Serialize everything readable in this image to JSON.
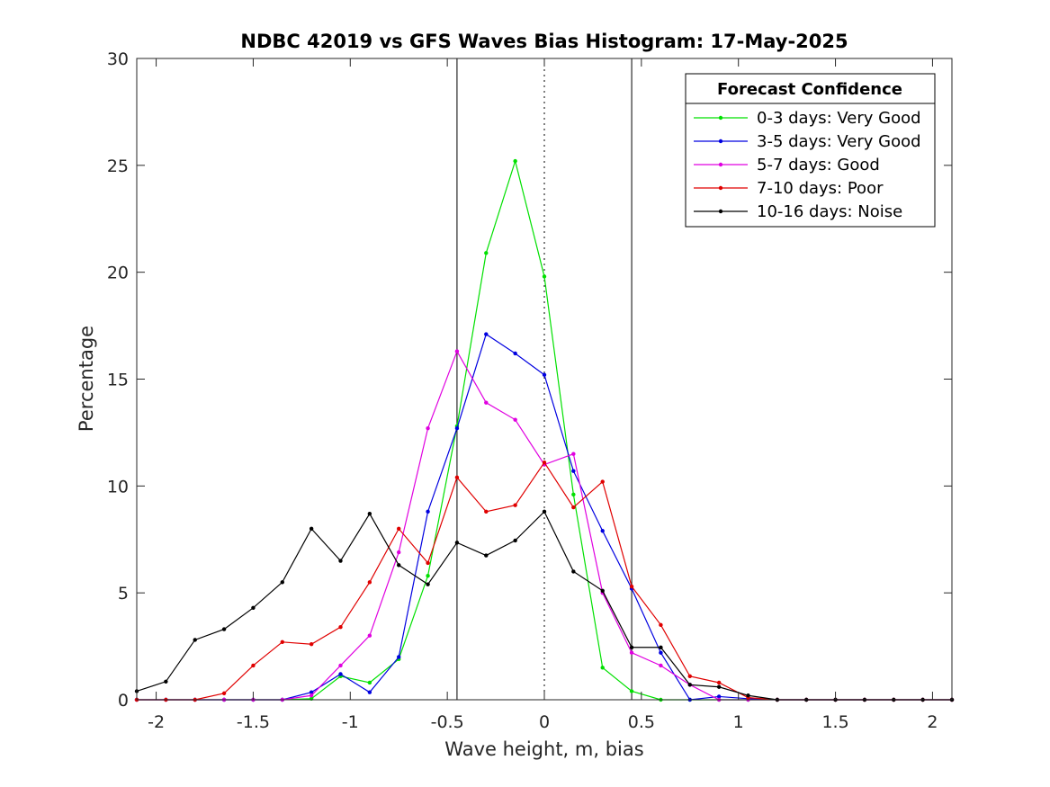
{
  "chart_data": {
    "type": "line",
    "title": "NDBC 42019 vs GFS Waves Bias Histogram: 17-May-2025",
    "xlabel": "Wave height, m, bias",
    "ylabel": "Percentage",
    "xlim": [
      -2.1,
      2.1
    ],
    "ylim": [
      0,
      30
    ],
    "x_ticks": [
      -2,
      -1.5,
      -1,
      -0.5,
      0,
      0.5,
      1,
      1.5,
      2
    ],
    "x_tick_labels": [
      "-2",
      "-1.5",
      "-1",
      "-0.5",
      "0",
      "0.5",
      "1",
      "1.5",
      "2"
    ],
    "y_ticks": [
      0,
      5,
      10,
      15,
      20,
      25,
      30
    ],
    "y_tick_labels": [
      "0",
      "5",
      "10",
      "15",
      "20",
      "25",
      "30"
    ],
    "grid": false,
    "reference_lines": {
      "solid_x": [
        -0.45,
        0.45
      ],
      "dotted_x": [
        0
      ]
    },
    "legend": {
      "title": "Forecast Confidence",
      "placement": "top-right"
    },
    "x": [
      -2.1,
      -1.95,
      -1.8,
      -1.65,
      -1.5,
      -1.35,
      -1.2,
      -1.05,
      -0.9,
      -0.75,
      -0.6,
      -0.45,
      -0.3,
      -0.15,
      0,
      0.15,
      0.3,
      0.45,
      0.6,
      0.75,
      0.9,
      1.05,
      1.2,
      1.35,
      1.5,
      1.65,
      1.8,
      1.95,
      2.1
    ],
    "series": [
      {
        "name": "0-3 days: Very Good",
        "color": "#00e000",
        "values": [
          0,
          0,
          0,
          0,
          0,
          0,
          0.05,
          1.1,
          0.8,
          1.9,
          5.8,
          12.8,
          20.9,
          25.2,
          19.8,
          9.6,
          1.5,
          0.4,
          0,
          0,
          0,
          0,
          0,
          0,
          0,
          0,
          0,
          0,
          0
        ]
      },
      {
        "name": "3-5 days: Very Good",
        "color": "#0000e0",
        "values": [
          0,
          0,
          0,
          0,
          0,
          0,
          0.35,
          1.2,
          0.35,
          2.0,
          8.8,
          12.7,
          17.1,
          16.2,
          15.2,
          10.7,
          7.9,
          5.2,
          2.2,
          0,
          0.15,
          0.05,
          0,
          0,
          0,
          0,
          0,
          0,
          0
        ]
      },
      {
        "name": "5-7 days: Good",
        "color": "#e000e0",
        "values": [
          0,
          0,
          0,
          0,
          0,
          0,
          0.2,
          1.6,
          3.0,
          6.9,
          12.7,
          16.3,
          13.9,
          13.1,
          11.0,
          11.5,
          5.0,
          2.2,
          1.6,
          0.7,
          0,
          0,
          0,
          0,
          0,
          0,
          0,
          0,
          0
        ]
      },
      {
        "name": "7-10 days: Poor",
        "color": "#e00000",
        "values": [
          0,
          0,
          0,
          0.3,
          1.6,
          2.7,
          2.6,
          3.4,
          5.5,
          8.0,
          6.4,
          10.4,
          8.8,
          9.1,
          11.1,
          9.0,
          10.2,
          5.3,
          3.5,
          1.1,
          0.8,
          0.1,
          0,
          0,
          0,
          0,
          0,
          0,
          0
        ]
      },
      {
        "name": "10-16 days: Noise",
        "color": "#000000",
        "values": [
          0.4,
          0.85,
          2.8,
          3.3,
          4.3,
          5.5,
          8.0,
          6.5,
          8.7,
          6.3,
          5.4,
          7.35,
          6.75,
          7.45,
          8.8,
          6.0,
          5.1,
          2.45,
          2.45,
          0.7,
          0.6,
          0.2,
          0,
          0,
          0,
          0,
          0,
          0,
          0
        ]
      }
    ]
  }
}
